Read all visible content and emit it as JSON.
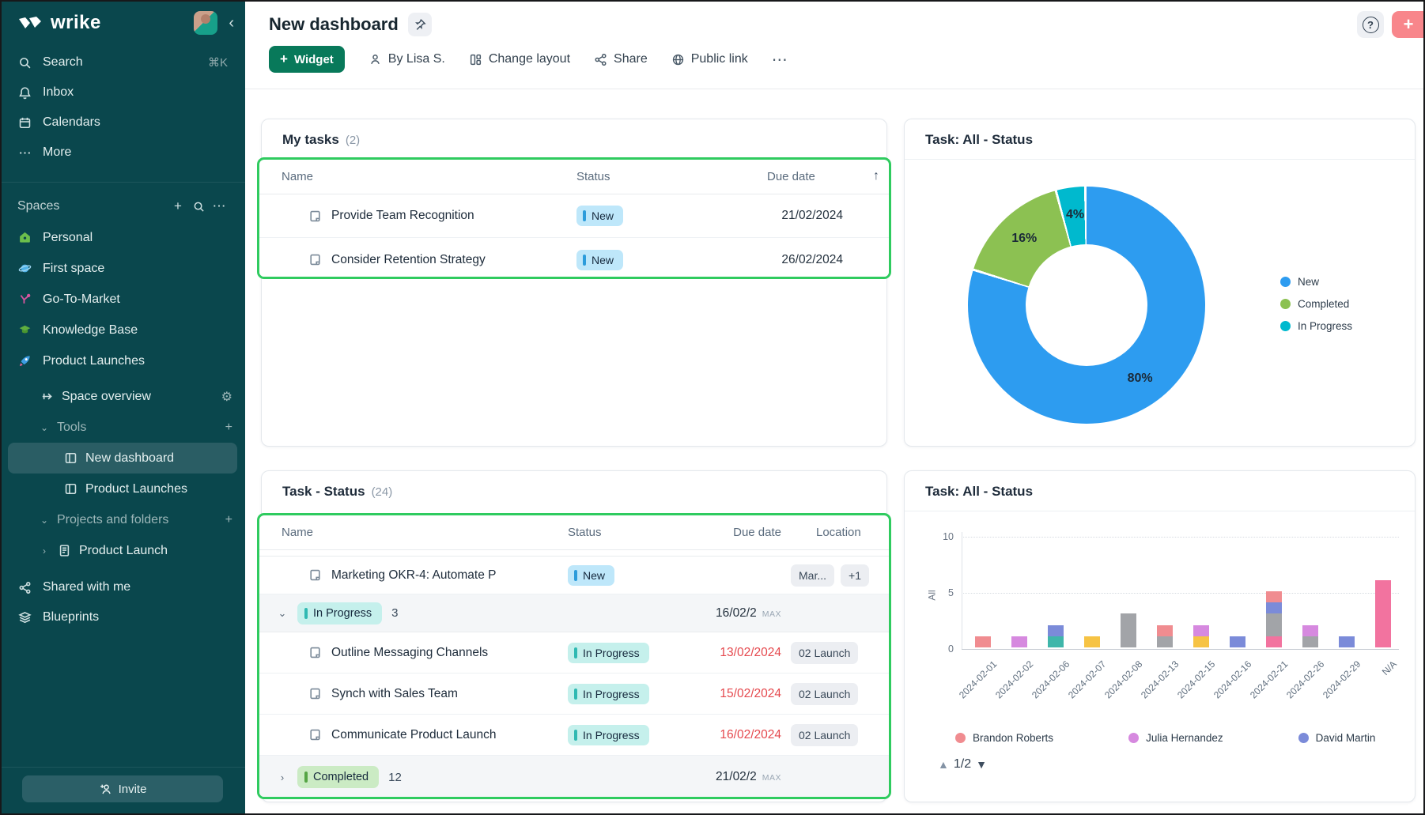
{
  "colors": {
    "accent_green_annotation": "#2fcb5f",
    "sidebar_bg": "#0a474d",
    "widget_btn": "#08795a",
    "add_btn": "#f8868b"
  },
  "sidebar": {
    "logo_text": "wrike",
    "nav": [
      {
        "icon": "search-icon",
        "label": "Search",
        "shortcut": "⌘K"
      },
      {
        "icon": "bell-icon",
        "label": "Inbox",
        "shortcut": ""
      },
      {
        "icon": "calendar-icon",
        "label": "Calendars",
        "shortcut": ""
      },
      {
        "icon": "dots-icon",
        "label": "More",
        "shortcut": ""
      }
    ],
    "spaces_header": {
      "label": "Spaces"
    },
    "spaces": [
      {
        "icon": "home-icon",
        "label": "Personal"
      },
      {
        "icon": "planet-icon",
        "label": "First space"
      },
      {
        "icon": "scatter-icon",
        "label": "Go-To-Market"
      },
      {
        "icon": "cap-icon",
        "label": "Knowledge Base"
      },
      {
        "icon": "rocket-icon",
        "label": "Product Launches"
      }
    ],
    "tree": [
      {
        "kind": "item",
        "icon": "arrow-right-icon",
        "label": "Space overview",
        "trail": "gear"
      },
      {
        "kind": "section",
        "chev": "down",
        "label": "Tools",
        "trail": "plus"
      },
      {
        "kind": "leaf",
        "icon": "board-icon",
        "label": "New dashboard",
        "selected": true
      },
      {
        "kind": "leaf",
        "icon": "board-icon",
        "label": "Product Launches",
        "selected": false
      },
      {
        "kind": "section",
        "chev": "down",
        "label": "Projects and folders",
        "trail": "plus"
      },
      {
        "kind": "leaf2",
        "chev": "right",
        "icon": "doc-icon",
        "label": "Product Launch"
      }
    ],
    "bottom": [
      {
        "icon": "share-icon",
        "label": "Shared with me"
      },
      {
        "icon": "layers-icon",
        "label": "Blueprints"
      }
    ],
    "invite_label": "Invite"
  },
  "header": {
    "title": "New dashboard",
    "toolbar": {
      "widget_label": "Widget",
      "by_label": "By Lisa S.",
      "change_layout_label": "Change layout",
      "share_label": "Share",
      "public_link_label": "Public link",
      "more_label": "⋯"
    },
    "help_label": "?",
    "add_label": "+"
  },
  "status_styles": {
    "New": {
      "bg": "#bee7fa",
      "bar": "#2c9cdb"
    },
    "In Progress": {
      "bg": "#c5f0ec",
      "bar": "#2fb9b2"
    },
    "Completed": {
      "bg": "#cbebc4",
      "bar": "#55a545"
    }
  },
  "my_tasks": {
    "title": "My tasks",
    "count": "(2)",
    "columns": [
      "Name",
      "Status",
      "Due date"
    ],
    "sort_icon": "↑",
    "rows": [
      {
        "name": "Provide Team Recognition",
        "status": "New",
        "due": "21/02/2024"
      },
      {
        "name": "Consider Retention Strategy",
        "status": "New",
        "due": "26/02/2024"
      }
    ]
  },
  "task_status": {
    "title": "Task - Status",
    "count": "(24)",
    "columns": [
      "Name",
      "Status",
      "Due date",
      "Location"
    ],
    "rows": [
      {
        "type": "task",
        "name": "Marketing OKR-4: Automate P",
        "status": "New",
        "due": "",
        "red": false,
        "locations": [
          "Mar...",
          "+1"
        ]
      },
      {
        "type": "group",
        "status": "In Progress",
        "count": "3",
        "due": "16/02/2",
        "max": "MAX",
        "chev": "down"
      },
      {
        "type": "task",
        "name": "Outline Messaging Channels",
        "status": "In Progress",
        "due": "13/02/2024",
        "red": true,
        "locations": [
          "02 Launch"
        ]
      },
      {
        "type": "task",
        "name": "Synch with Sales Team",
        "status": "In Progress",
        "due": "15/02/2024",
        "red": true,
        "locations": [
          "02 Launch"
        ]
      },
      {
        "type": "task",
        "name": "Communicate Product Launch",
        "status": "In Progress",
        "due": "16/02/2024",
        "red": true,
        "locations": [
          "02 Launch"
        ]
      },
      {
        "type": "group",
        "status": "Completed",
        "count": "12",
        "due": "21/02/2",
        "max": "MAX",
        "chev": "right"
      }
    ]
  },
  "chart_data": [
    {
      "type": "pie",
      "title": "Task: All - Status",
      "segments": [
        {
          "label": "New",
          "value": 80,
          "color": "#2d9cf0",
          "text": "80%"
        },
        {
          "label": "Completed",
          "value": 16,
          "color": "#8cc152",
          "text": "16%"
        },
        {
          "label": "In Progress",
          "value": 4,
          "color": "#00b9ce",
          "text": "4%"
        }
      ],
      "legend_position": "right",
      "donut_hole": 0.51
    },
    {
      "type": "bar",
      "title": "Task: All - Status",
      "ylabel": "All",
      "yticks": [
        0,
        5,
        10
      ],
      "ylim": [
        0,
        10
      ],
      "grid": true,
      "categories": [
        "2024-02-01",
        "2024-02-02",
        "2024-02-06",
        "2024-02-07",
        "2024-02-08",
        "2024-02-13",
        "2024-02-15",
        "2024-02-16",
        "2024-02-21",
        "2024-02-26",
        "2024-02-29",
        "N/A"
      ],
      "palette": {
        "salmon": "#f08c90",
        "orchid": "#d689df",
        "periwinkle": "#7b8bd9",
        "teal": "#3fb6aa",
        "yellow": "#f6c344",
        "gray": "#a2a4a8",
        "pink": "#f2739f"
      },
      "stacks": [
        [
          [
            "salmon",
            1
          ]
        ],
        [
          [
            "orchid",
            1
          ]
        ],
        [
          [
            "teal",
            1
          ],
          [
            "periwinkle",
            1
          ]
        ],
        [
          [
            "yellow",
            1
          ]
        ],
        [
          [
            "gray",
            3
          ]
        ],
        [
          [
            "gray",
            1
          ],
          [
            "salmon",
            1
          ]
        ],
        [
          [
            "yellow",
            1
          ],
          [
            "orchid",
            1
          ]
        ],
        [
          [
            "periwinkle",
            1
          ]
        ],
        [
          [
            "pink",
            1
          ],
          [
            "gray",
            2
          ],
          [
            "periwinkle",
            1
          ],
          [
            "salmon",
            1
          ]
        ],
        [
          [
            "gray",
            1
          ],
          [
            "orchid",
            1
          ]
        ],
        [
          [
            "periwinkle",
            1
          ]
        ],
        [
          [
            "pink",
            6
          ]
        ]
      ],
      "legend": [
        {
          "label": "Brandon Roberts",
          "color": "#f08c90"
        },
        {
          "label": "Julia Hernandez",
          "color": "#d689df"
        },
        {
          "label": "David Martin",
          "color": "#7b8bd9"
        }
      ],
      "pagination": "1/2"
    }
  ]
}
